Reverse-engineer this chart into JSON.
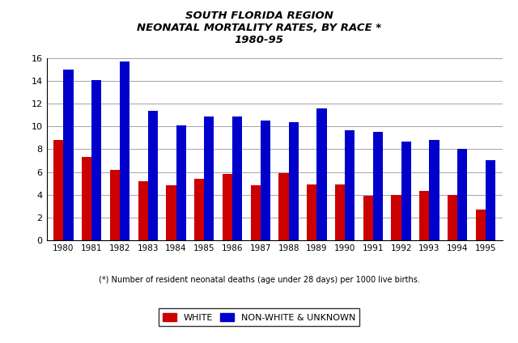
{
  "title_line1": "SOUTH FLORIDA REGION",
  "title_line2": "NEONATAL MORTALITY RATES, BY RACE *",
  "title_line3": "1980-95",
  "years": [
    1980,
    1981,
    1982,
    1983,
    1984,
    1985,
    1986,
    1987,
    1988,
    1989,
    1990,
    1991,
    1992,
    1993,
    1994,
    1995
  ],
  "white": [
    8.8,
    7.3,
    6.2,
    5.2,
    4.8,
    5.4,
    5.8,
    4.8,
    5.9,
    4.9,
    4.9,
    3.9,
    4.0,
    4.3,
    4.0,
    2.7
  ],
  "nonwhite": [
    15.0,
    14.1,
    15.7,
    11.4,
    10.1,
    10.9,
    10.9,
    10.5,
    10.4,
    11.6,
    9.7,
    9.5,
    8.7,
    8.8,
    8.0,
    7.0
  ],
  "white_color": "#cc0000",
  "nonwhite_color": "#0000cc",
  "ylim": [
    0,
    16
  ],
  "yticks": [
    0,
    2,
    4,
    6,
    8,
    10,
    12,
    14,
    16
  ],
  "footnote": "(*) Number of resident neonatal deaths (age under 28 days) per 1000 live births.",
  "legend_white": "WHITE",
  "legend_nonwhite": "NON-WHITE & UNKNOWN",
  "bg_color": "#ffffff",
  "bar_width": 0.35
}
